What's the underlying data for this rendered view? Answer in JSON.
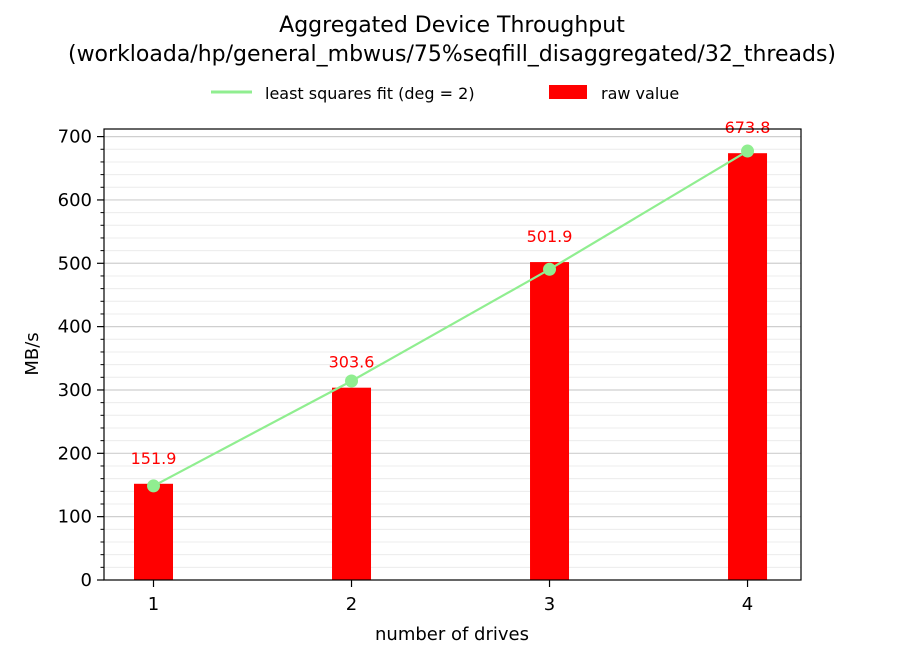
{
  "chart_data": {
    "type": "bar",
    "title_line1": "Aggregated Device Throughput",
    "title_line2": "(workloada/hp/general_mbwus/75%seqfill_disaggregated/32_threads)",
    "xlabel": "number of drives",
    "ylabel": "MB/s",
    "categories": [
      "1",
      "2",
      "3",
      "4"
    ],
    "x": [
      1,
      2,
      3,
      4
    ],
    "ylim": [
      0,
      712
    ],
    "yticks": [
      0,
      100,
      200,
      300,
      400,
      500,
      600,
      700
    ],
    "ytick_labels": [
      "0",
      "100",
      "200",
      "300",
      "400",
      "500",
      "600",
      "700"
    ],
    "grid": true,
    "legend_position": "top-center",
    "series": [
      {
        "name": "raw value",
        "kind": "bar",
        "color": "#ff0000",
        "values": [
          151.9,
          303.6,
          501.9,
          673.8
        ],
        "labels": [
          "151.9",
          "303.6",
          "501.9",
          "673.8"
        ]
      },
      {
        "name": "least squares fit (deg = 2)",
        "kind": "line",
        "color": "#90ee90",
        "values": [
          148.5,
          314.2,
          490.5,
          677.2
        ]
      }
    ],
    "label_color": "#ff0000"
  }
}
